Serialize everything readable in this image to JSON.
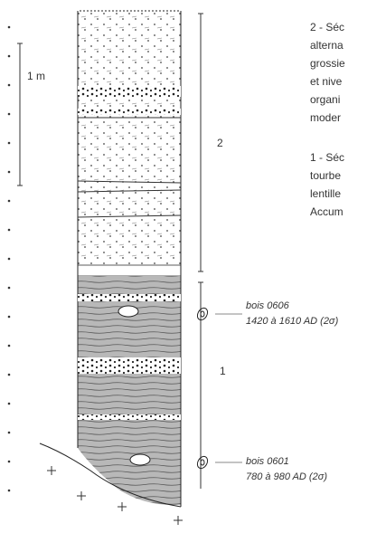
{
  "description_lines": [
    "2 - Séc",
    "alterna",
    "grossie",
    "et nive",
    "organi",
    "moder",
    "1 - Séc",
    "tourbe",
    "lentille",
    "Accum"
  ],
  "scale": {
    "label": "1 m"
  },
  "units": [
    {
      "label": "2"
    },
    {
      "label": "1"
    }
  ],
  "samples": [
    {
      "name": "bois 0606",
      "date": "1420 à 1610 AD (2σ)"
    },
    {
      "name": "bois 0601",
      "date": "780 à 980 AD (2σ)"
    }
  ]
}
